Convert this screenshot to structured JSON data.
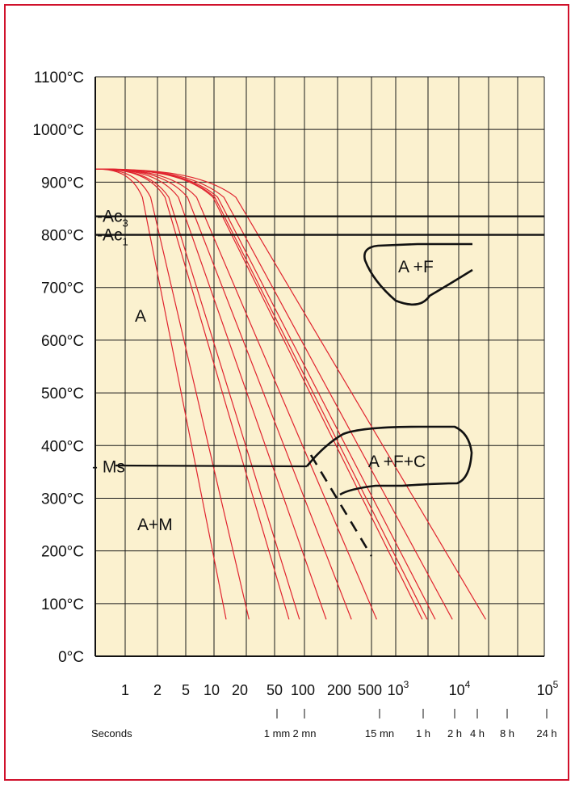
{
  "chart_data": {
    "type": "line",
    "title": "",
    "xlabel": "",
    "ylabel": "",
    "xscale": "log",
    "ylim": [
      0,
      1100
    ],
    "y_ticks": [
      "0°C",
      "100°C",
      "200°C",
      "300°C",
      "400°C",
      "500°C",
      "600°C",
      "700°C",
      "800°C",
      "900°C",
      "1000°C",
      "1100°C"
    ],
    "x_ticks": [
      {
        "label": "1",
        "sup": ""
      },
      {
        "label": "2",
        "sup": ""
      },
      {
        "label": "5",
        "sup": ""
      },
      {
        "label": "10",
        "sup": ""
      },
      {
        "label": "20",
        "sup": ""
      },
      {
        "label": "50",
        "sup": ""
      },
      {
        "label": "100",
        "sup": ""
      },
      {
        "label": "200",
        "sup": ""
      },
      {
        "label": "500",
        "sup": ""
      },
      {
        "label": "10",
        "sup": "3"
      },
      {
        "label": "10",
        "sup": "4"
      },
      {
        "label": "10",
        "sup": "5"
      }
    ],
    "time_units_label": "Seconds",
    "time_ticks": [
      "1 mm",
      "2 mn",
      "15 mn",
      "1 h",
      "2 h",
      "4 h",
      "8 h",
      "24 h"
    ],
    "critical_temps": [
      {
        "name": "Ac",
        "sub": "3",
        "value": 835
      },
      {
        "name": "Ac",
        "sub": "1",
        "value": 800
      },
      {
        "name": "Ms",
        "sub": "",
        "value": 360
      }
    ],
    "regions": [
      "A",
      "A +F",
      "A +F+C",
      "A+M"
    ],
    "cooling_curves_end_seconds": [
      16,
      30,
      90,
      120,
      250,
      500,
      1000,
      3500,
      4000,
      5000,
      8000,
      20000
    ],
    "start_temperature": 925,
    "colors": {
      "background": "#fbf1cf",
      "grid": "#1a1a1a",
      "cooling": "#e0242f",
      "phase": "#111111",
      "frame": "#d0112b"
    }
  }
}
